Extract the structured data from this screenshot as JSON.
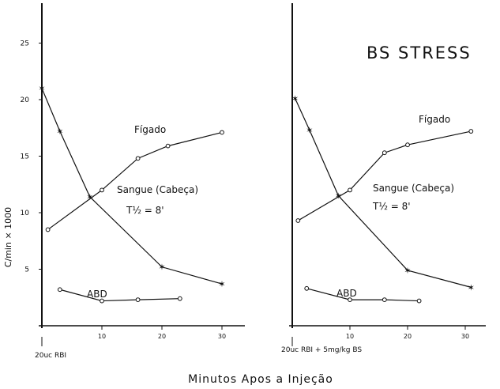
{
  "figure": {
    "ylabel": "C/min × 1000",
    "xlabel": "Minutos Apos a Injeção",
    "ink_color": "#111111"
  },
  "chart_data": [
    {
      "type": "line",
      "panel": "left",
      "title": "",
      "xlabel": "Minutos Apos a Injeção",
      "ylabel": "C/min × 1000",
      "xlim": [
        0,
        33
      ],
      "ylim": [
        0,
        27
      ],
      "x_ticks": [
        "10",
        "20",
        "30"
      ],
      "y_ticks": [
        "5",
        "10",
        "15",
        "20",
        "25"
      ],
      "grid": false,
      "injection_label": "20uc RBI",
      "annotations": [
        "T½ = 8'"
      ],
      "series": [
        {
          "name": "Fígado",
          "marker": "circle",
          "points": [
            [
              1,
              8.5
            ],
            [
              10,
              12
            ],
            [
              16,
              14.8
            ],
            [
              21,
              15.9
            ],
            [
              30,
              17.1
            ]
          ]
        },
        {
          "name": "Sangue (Cabeça)",
          "marker": "star",
          "points": [
            [
              0,
              21
            ],
            [
              3,
              17.2
            ],
            [
              8,
              11.4
            ],
            [
              20,
              5.2
            ],
            [
              30,
              3.7
            ]
          ]
        },
        {
          "name": "ABD",
          "marker": "circle",
          "points": [
            [
              3,
              3.2
            ],
            [
              10,
              2.2
            ],
            [
              16,
              2.3
            ],
            [
              23,
              2.4
            ]
          ]
        }
      ]
    },
    {
      "type": "line",
      "panel": "right",
      "title": "BS STRESS",
      "xlabel": "Minutos Apos a Injeção",
      "ylabel": "",
      "xlim": [
        0,
        33
      ],
      "ylim": [
        0,
        27
      ],
      "x_ticks": [
        "10",
        "20",
        "30"
      ],
      "grid": false,
      "injection_label": "20uc RBI + 5mg/kg BS",
      "annotations": [
        "T½ = 8'"
      ],
      "series": [
        {
          "name": "Fígado",
          "marker": "circle",
          "points": [
            [
              1,
              9.3
            ],
            [
              10,
              12
            ],
            [
              16,
              15.3
            ],
            [
              20,
              16
            ],
            [
              31,
              17.2
            ]
          ]
        },
        {
          "name": "Sangue (Cabeça)",
          "marker": "star",
          "points": [
            [
              0.5,
              20.1
            ],
            [
              3,
              17.3
            ],
            [
              8,
              11.5
            ],
            [
              20,
              4.9
            ],
            [
              31,
              3.4
            ]
          ]
        },
        {
          "name": "ABD",
          "marker": "circle",
          "points": [
            [
              2.5,
              3.3
            ],
            [
              10,
              2.3
            ],
            [
              16,
              2.3
            ],
            [
              22,
              2.2
            ]
          ]
        }
      ]
    }
  ]
}
